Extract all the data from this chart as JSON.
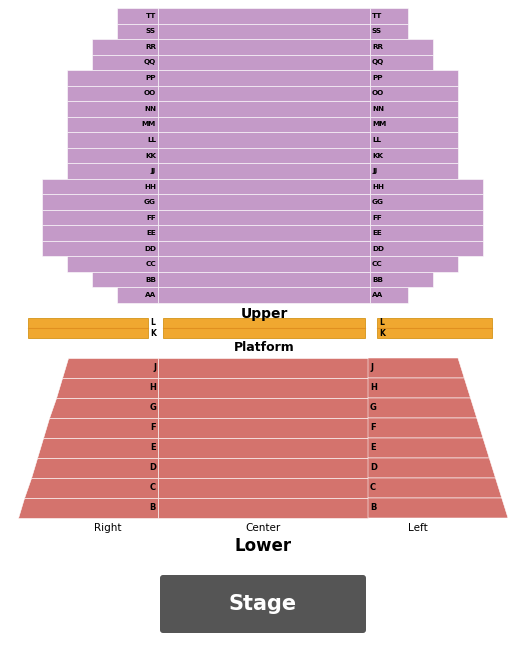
{
  "upper_color": "#c49ac8",
  "stripe_color": "#ffffff",
  "lower_color": "#d4736d",
  "platform_color": "#f0a830",
  "stage_color": "#555555",
  "stage_text_color": "#ffffff",
  "background_color": "#ffffff",
  "upper_rows": [
    "TT",
    "SS",
    "RR",
    "QQ",
    "PP",
    "OO",
    "NN",
    "MM",
    "LL",
    "KK",
    "JJ",
    "HH",
    "GG",
    "FF",
    "EE",
    "DD",
    "CC",
    "BB",
    "AA"
  ],
  "lower_rows": [
    "J",
    "H",
    "G",
    "F",
    "E",
    "D",
    "C",
    "B"
  ],
  "platform_rows": [
    "L",
    "K"
  ],
  "upper_label": "Upper",
  "lower_label": "Lower",
  "platform_label": "Platform",
  "stage_label": "Stage",
  "right_label": "Right",
  "center_label": "Center",
  "left_label": "Left",
  "fig_width": 5.25,
  "fig_height": 6.5,
  "dpi": 100
}
